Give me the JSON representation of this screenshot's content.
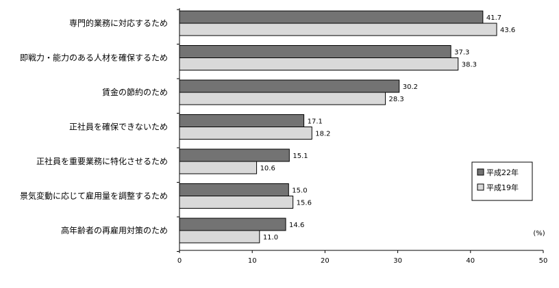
{
  "chart_data": {
    "type": "bar",
    "orientation": "horizontal",
    "categories": [
      "専門的業務に対応するため",
      "即戦力・能力のある人材を確保するため",
      "賃金の節約のため",
      "正社員を確保できないため",
      "正社員を重要業務に特化させるため",
      "景気変動に応じて雇用量を調整するため",
      "高年齢者の再雇用対策のため"
    ],
    "series": [
      {
        "name": "平成22年",
        "color": "#737373",
        "values": [
          41.7,
          37.3,
          30.2,
          17.1,
          15.1,
          15.0,
          14.6
        ]
      },
      {
        "name": "平成19年",
        "color": "#d9d9d9",
        "values": [
          43.6,
          38.3,
          28.3,
          18.2,
          10.6,
          15.6,
          11.0
        ]
      }
    ],
    "value_labels": [
      [
        "41.7",
        "37.3",
        "30.2",
        "17.1",
        "15.1",
        "15.0",
        "14.6"
      ],
      [
        "43.6",
        "38.3",
        "28.3",
        "18.2",
        "10.6",
        "15.6",
        "11.0"
      ]
    ],
    "xlim": [
      0,
      50
    ],
    "xticks": [
      0,
      10,
      20,
      30,
      40,
      50
    ],
    "unit_label": "(%)",
    "legend_position": "right",
    "grid": false
  }
}
